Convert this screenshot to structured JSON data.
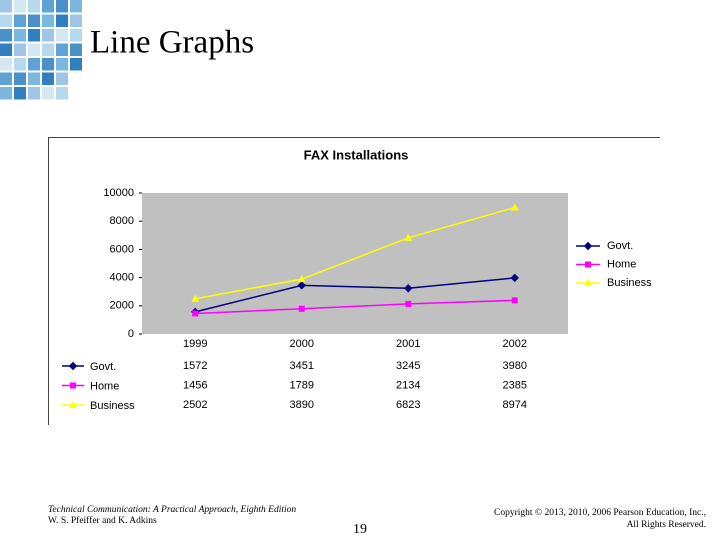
{
  "slide": {
    "title": "Line Graphs",
    "footer_left": [
      "Technical Communication: A Practical Approach, Eighth Edition",
      "W. S. Pfeiffer and K. Adkins"
    ],
    "page_number": "19",
    "footer_right": [
      "Copyright © 2013, 2010, 2006 Pearson Education, Inc.,",
      "All Rights Reserved."
    ]
  },
  "chart_data": {
    "type": "line",
    "title": "FAX Installations",
    "categories": [
      "1999",
      "2000",
      "2001",
      "2002"
    ],
    "series": [
      {
        "name": "Govt.",
        "color": "#000080",
        "marker": "diamond",
        "values": [
          1572,
          3451,
          3245,
          3980
        ]
      },
      {
        "name": "Home",
        "color": "#ff00ff",
        "marker": "square",
        "values": [
          1456,
          1789,
          2134,
          2385
        ]
      },
      {
        "name": "Business",
        "color": "#ffff00",
        "marker": "triangle",
        "values": [
          2502,
          3890,
          6823,
          8974
        ]
      }
    ],
    "ylim": [
      0,
      10000
    ],
    "yticks": [
      0,
      2000,
      4000,
      6000,
      8000,
      10000
    ],
    "legend": "right",
    "data_table": true,
    "plot_background": "#c0c0c0"
  }
}
